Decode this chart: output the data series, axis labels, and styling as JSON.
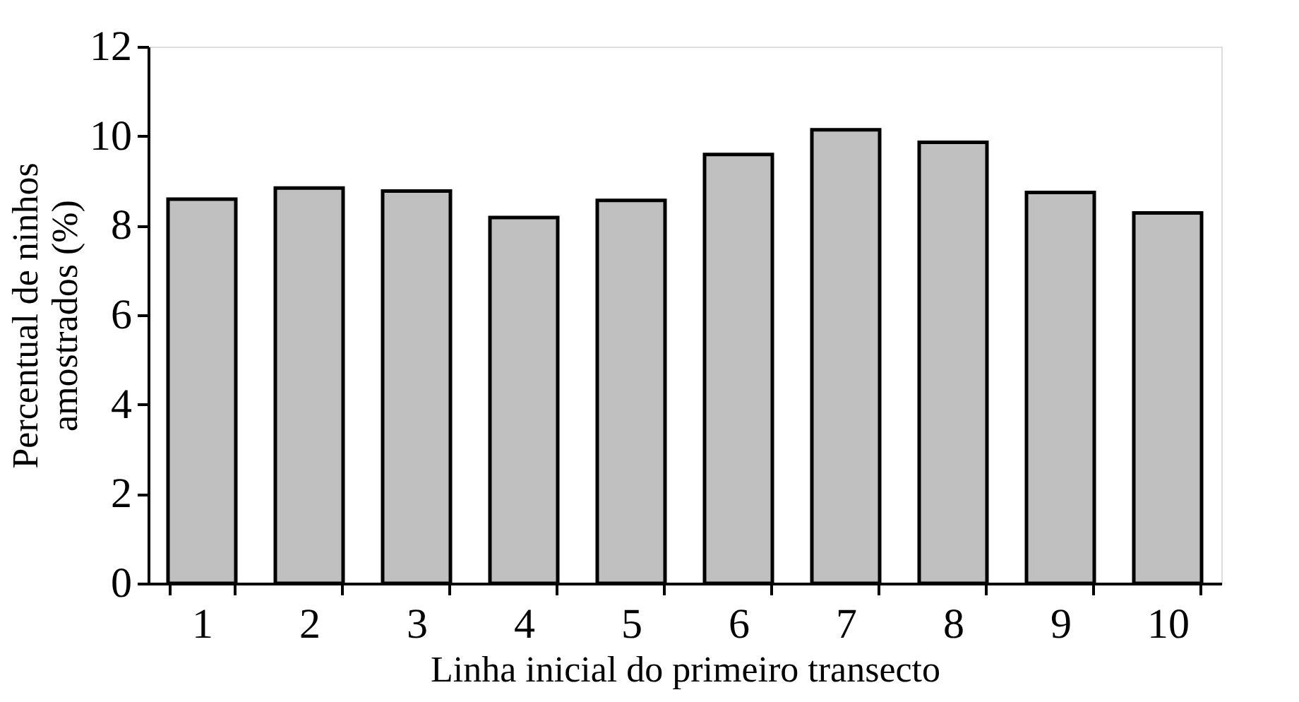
{
  "chart_data": {
    "type": "bar",
    "categories": [
      "1",
      "2",
      "3",
      "4",
      "5",
      "6",
      "7",
      "8",
      "9",
      "10"
    ],
    "values": [
      8.59,
      8.84,
      8.77,
      8.18,
      8.56,
      9.59,
      10.14,
      9.86,
      8.74,
      8.28
    ],
    "color": "#c0c0c0",
    "xlabel": "Linha inicial do primeiro transecto",
    "ylabel": "Percentual de ninhos amostrados (%)",
    "ylim": [
      0,
      12
    ],
    "yticks": [
      0,
      2,
      4,
      6,
      8,
      10,
      12
    ],
    "grid": false
  }
}
